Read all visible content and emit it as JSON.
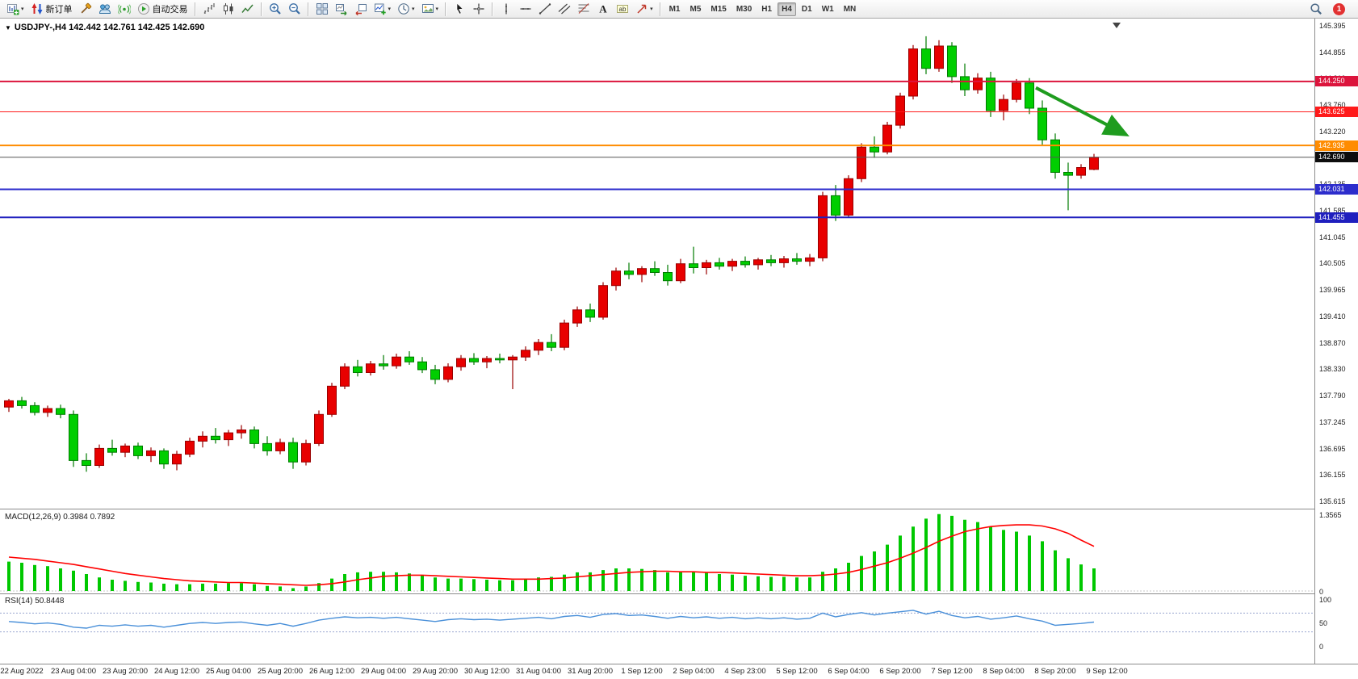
{
  "colors": {
    "bull": "#e80000",
    "bull_border": "#9a0000",
    "bear": "#00ce00",
    "bear_border": "#007a00",
    "macd_histogram": "#00c800",
    "macd_signal": "#ff0000",
    "rsi_line": "#4a90d9",
    "rsi_levels": "#9aa6d0",
    "annotation_arrow": "#1f9c1f"
  },
  "toolbar": {
    "groups": [
      {
        "items": [
          {
            "name": "new-chart-button",
            "icon": "new-chart",
            "caret": true
          },
          {
            "name": "new-order-button",
            "icon": "order-arrows",
            "label": "新订单"
          },
          {
            "name": "metaeditor-button",
            "icon": "hammer"
          },
          {
            "name": "experts-button",
            "icon": "experts"
          },
          {
            "name": "signals-button",
            "icon": "signals"
          },
          {
            "name": "autotrading-button",
            "icon": "play",
            "label": "自动交易"
          }
        ]
      },
      {
        "items": [
          {
            "name": "bar-chart-button",
            "icon": "bars"
          },
          {
            "name": "candle-chart-button",
            "icon": "candles"
          },
          {
            "name": "line-chart-button",
            "icon": "linechart"
          }
        ]
      },
      {
        "items": [
          {
            "name": "zoom-in-button",
            "icon": "zoom-in"
          },
          {
            "name": "zoom-out-button",
            "icon": "zoom-out"
          }
        ]
      },
      {
        "items": [
          {
            "name": "tile-windows-button",
            "icon": "tile"
          },
          {
            "name": "autoscroll-button",
            "icon": "autoscroll"
          },
          {
            "name": "chart-shift-button",
            "icon": "shift"
          },
          {
            "name": "indicators-button",
            "icon": "indicators",
            "caret": true
          },
          {
            "name": "periods-button",
            "icon": "clock",
            "caret": true
          },
          {
            "name": "templates-button",
            "icon": "template",
            "caret": true
          }
        ]
      },
      {
        "items": [
          {
            "name": "cursor-button",
            "icon": "cursor"
          },
          {
            "name": "crosshair-button",
            "icon": "crosshair"
          }
        ]
      },
      {
        "items": [
          {
            "name": "vertical-line-button",
            "icon": "vline"
          },
          {
            "name": "horizontal-line-button",
            "icon": "hline"
          },
          {
            "name": "trendline-button",
            "icon": "trendline"
          },
          {
            "name": "channel-button",
            "icon": "channel"
          },
          {
            "name": "fibonacci-button",
            "icon": "fibo"
          },
          {
            "name": "text-button",
            "icon": "text"
          },
          {
            "name": "label-button",
            "icon": "label"
          },
          {
            "name": "arrows-menu-button",
            "icon": "arrow-obj",
            "caret": true
          }
        ]
      }
    ],
    "timeframes": [
      "M1",
      "M5",
      "M15",
      "M30",
      "H1",
      "H4",
      "D1",
      "W1",
      "MN"
    ],
    "active_timeframe": "H4",
    "badge": "1"
  },
  "chart_data": {
    "type": "candlestick",
    "header": "USDJPY-,H4 142.442 142.761 142.425 142.690",
    "symbol": "USDJPY-",
    "timeframe": "H4",
    "current_ohlc": {
      "open": 142.442,
      "high": 142.761,
      "low": 142.425,
      "close": 142.69
    },
    "color_convention": "red-up-green-down",
    "y_axis": {
      "min": 135.615,
      "max": 145.395,
      "ticks": [
        "145.395",
        "144.855",
        "144.310",
        "143.760",
        "143.220",
        "142.675",
        "142.135",
        "141.585",
        "141.045",
        "140.505",
        "139.965",
        "139.410",
        "138.870",
        "138.330",
        "137.790",
        "137.245",
        "136.695",
        "136.155",
        "135.615"
      ]
    },
    "x_axis": {
      "labels": [
        "22 Aug 2022",
        "23 Aug 04:00",
        "23 Aug 20:00",
        "24 Aug 12:00",
        "25 Aug 04:00",
        "25 Aug 20:00",
        "26 Aug 12:00",
        "29 Aug 04:00",
        "29 Aug 20:00",
        "30 Aug 12:00",
        "31 Aug 04:00",
        "31 Aug 20:00",
        "1 Sep 12:00",
        "2 Sep 04:00",
        "4 Sep 23:00",
        "5 Sep 12:00",
        "6 Sep 04:00",
        "6 Sep 20:00",
        "7 Sep 12:00",
        "8 Sep 04:00",
        "8 Sep 20:00",
        "9 Sep 12:00"
      ]
    },
    "horizontal_lines": [
      {
        "price": 144.25,
        "label": "144.250",
        "color": "#dc143c",
        "width": 2
      },
      {
        "price": 143.625,
        "label": "143.625",
        "color": "#ff1a1a",
        "width": 1
      },
      {
        "price": 142.935,
        "label": "142.935",
        "color": "#ff8c00",
        "width": 2
      },
      {
        "price": 142.69,
        "label": "142.690",
        "color": "#555555",
        "width": 1,
        "label_bg": "#0d0d0d",
        "role": "current-price"
      },
      {
        "price": 142.031,
        "label": "142.031",
        "color": "#2d2dcc",
        "width": 2
      },
      {
        "price": 141.455,
        "label": "141.455",
        "color": "#1f1fbe",
        "width": 2
      }
    ],
    "annotations": [
      {
        "type": "arrow",
        "direction": "down-right",
        "color": "#1f9c1f",
        "x1_index": 79.5,
        "price1": 144.12,
        "x2_index": 86.3,
        "price2": 143.18
      }
    ],
    "candles": [
      [
        137.55,
        137.72,
        137.45,
        137.68
      ],
      [
        137.68,
        137.76,
        137.52,
        137.58
      ],
      [
        137.58,
        137.65,
        137.38,
        137.44
      ],
      [
        137.44,
        137.58,
        137.35,
        137.52
      ],
      [
        137.52,
        137.6,
        137.32,
        137.4
      ],
      [
        137.4,
        137.48,
        136.32,
        136.45
      ],
      [
        136.45,
        136.6,
        136.22,
        136.35
      ],
      [
        136.35,
        136.78,
        136.3,
        136.7
      ],
      [
        136.7,
        136.88,
        136.55,
        136.62
      ],
      [
        136.62,
        136.8,
        136.52,
        136.75
      ],
      [
        136.75,
        136.82,
        136.48,
        136.55
      ],
      [
        136.55,
        136.72,
        136.42,
        136.65
      ],
      [
        136.65,
        136.7,
        136.28,
        136.38
      ],
      [
        136.38,
        136.65,
        136.25,
        136.58
      ],
      [
        136.58,
        136.92,
        136.52,
        136.85
      ],
      [
        136.85,
        137.05,
        136.72,
        136.95
      ],
      [
        136.95,
        137.12,
        136.8,
        136.88
      ],
      [
        136.88,
        137.08,
        136.75,
        137.02
      ],
      [
        137.02,
        137.18,
        136.9,
        137.08
      ],
      [
        137.08,
        137.15,
        136.7,
        136.8
      ],
      [
        136.8,
        136.95,
        136.55,
        136.65
      ],
      [
        136.65,
        136.9,
        136.58,
        136.82
      ],
      [
        136.82,
        136.92,
        136.28,
        136.42
      ],
      [
        136.42,
        136.88,
        136.35,
        136.8
      ],
      [
        136.8,
        137.48,
        136.75,
        137.4
      ],
      [
        137.4,
        138.05,
        137.35,
        137.98
      ],
      [
        137.98,
        138.45,
        137.92,
        138.38
      ],
      [
        138.38,
        138.52,
        138.18,
        138.26
      ],
      [
        138.26,
        138.5,
        138.2,
        138.44
      ],
      [
        138.44,
        138.62,
        138.32,
        138.4
      ],
      [
        138.4,
        138.65,
        138.34,
        138.58
      ],
      [
        138.58,
        138.7,
        138.42,
        138.48
      ],
      [
        138.48,
        138.58,
        138.25,
        138.32
      ],
      [
        138.32,
        138.42,
        138.02,
        138.12
      ],
      [
        138.12,
        138.45,
        138.06,
        138.38
      ],
      [
        138.38,
        138.62,
        138.3,
        138.55
      ],
      [
        138.55,
        138.66,
        138.42,
        138.48
      ],
      [
        138.48,
        138.6,
        138.35,
        138.55
      ],
      [
        138.55,
        138.65,
        138.45,
        138.52
      ],
      [
        138.52,
        138.62,
        137.92,
        138.58
      ],
      [
        138.58,
        138.8,
        138.5,
        138.72
      ],
      [
        138.72,
        138.95,
        138.62,
        138.88
      ],
      [
        138.88,
        139.05,
        138.7,
        138.78
      ],
      [
        138.78,
        139.35,
        138.72,
        139.28
      ],
      [
        139.28,
        139.62,
        139.2,
        139.55
      ],
      [
        139.55,
        139.68,
        139.3,
        139.4
      ],
      [
        139.4,
        140.12,
        139.35,
        140.05
      ],
      [
        140.05,
        140.42,
        139.95,
        140.35
      ],
      [
        140.35,
        140.52,
        140.18,
        140.28
      ],
      [
        140.28,
        140.45,
        140.12,
        140.4
      ],
      [
        140.4,
        140.55,
        140.25,
        140.32
      ],
      [
        140.32,
        140.48,
        140.05,
        140.15
      ],
      [
        140.15,
        140.6,
        140.1,
        140.5
      ],
      [
        140.5,
        140.85,
        140.3,
        140.42
      ],
      [
        140.42,
        140.58,
        140.28,
        140.52
      ],
      [
        140.52,
        140.62,
        140.38,
        140.45
      ],
      [
        140.45,
        140.6,
        140.35,
        140.55
      ],
      [
        140.55,
        140.65,
        140.42,
        140.48
      ],
      [
        140.48,
        140.62,
        140.38,
        140.58
      ],
      [
        140.58,
        140.68,
        140.45,
        140.52
      ],
      [
        140.52,
        140.66,
        140.42,
        140.6
      ],
      [
        140.6,
        140.72,
        140.48,
        140.55
      ],
      [
        140.55,
        140.7,
        140.45,
        140.62
      ],
      [
        140.62,
        141.98,
        140.55,
        141.9
      ],
      [
        141.9,
        142.12,
        141.38,
        141.5
      ],
      [
        141.5,
        142.32,
        141.45,
        142.25
      ],
      [
        142.25,
        142.98,
        142.18,
        142.9
      ],
      [
        142.9,
        143.12,
        142.68,
        142.8
      ],
      [
        142.8,
        143.42,
        142.75,
        143.35
      ],
      [
        143.35,
        144.02,
        143.28,
        143.95
      ],
      [
        143.95,
        145.0,
        143.88,
        144.92
      ],
      [
        144.92,
        145.18,
        144.4,
        144.52
      ],
      [
        144.52,
        145.1,
        144.45,
        144.98
      ],
      [
        144.98,
        145.06,
        144.22,
        144.35
      ],
      [
        144.35,
        144.62,
        143.95,
        144.08
      ],
      [
        144.08,
        144.42,
        144.0,
        144.32
      ],
      [
        144.32,
        144.45,
        143.52,
        143.65
      ],
      [
        143.65,
        143.98,
        143.45,
        143.88
      ],
      [
        143.88,
        144.3,
        143.82,
        144.22
      ],
      [
        144.22,
        144.32,
        143.58,
        143.7
      ],
      [
        143.7,
        143.86,
        142.92,
        143.05
      ],
      [
        143.05,
        143.18,
        142.25,
        142.38
      ],
      [
        142.38,
        142.58,
        141.6,
        142.32
      ],
      [
        142.32,
        142.55,
        142.25,
        142.48
      ],
      [
        142.442,
        142.761,
        142.425,
        142.69
      ]
    ],
    "indicators": {
      "macd": {
        "label": "MACD(12,26,9) 0.3984 0.7892",
        "params": "12,26,9",
        "main_value": 0.3984,
        "signal_value": 0.7892,
        "axis_labels": [
          "1.3565",
          "0"
        ],
        "y_max": 1.3565,
        "histogram": [
          0.52,
          0.5,
          0.46,
          0.44,
          0.4,
          0.36,
          0.3,
          0.24,
          0.2,
          0.18,
          0.16,
          0.15,
          0.13,
          0.12,
          0.12,
          0.13,
          0.13,
          0.14,
          0.14,
          0.12,
          0.09,
          0.08,
          0.05,
          0.08,
          0.14,
          0.22,
          0.3,
          0.33,
          0.34,
          0.34,
          0.33,
          0.31,
          0.28,
          0.24,
          0.22,
          0.22,
          0.21,
          0.2,
          0.19,
          0.19,
          0.21,
          0.24,
          0.25,
          0.29,
          0.33,
          0.33,
          0.37,
          0.4,
          0.4,
          0.39,
          0.37,
          0.33,
          0.33,
          0.33,
          0.32,
          0.3,
          0.29,
          0.27,
          0.26,
          0.25,
          0.25,
          0.24,
          0.24,
          0.34,
          0.4,
          0.5,
          0.62,
          0.7,
          0.82,
          0.98,
          1.14,
          1.28,
          1.36,
          1.33,
          1.26,
          1.22,
          1.14,
          1.08,
          1.05,
          0.98,
          0.88,
          0.72,
          0.58,
          0.47,
          0.4
        ],
        "signal": [
          0.6,
          0.58,
          0.56,
          0.53,
          0.5,
          0.47,
          0.43,
          0.39,
          0.35,
          0.31,
          0.28,
          0.25,
          0.22,
          0.2,
          0.18,
          0.17,
          0.16,
          0.15,
          0.15,
          0.14,
          0.13,
          0.12,
          0.11,
          0.1,
          0.11,
          0.13,
          0.16,
          0.2,
          0.23,
          0.26,
          0.27,
          0.28,
          0.28,
          0.27,
          0.26,
          0.25,
          0.24,
          0.23,
          0.22,
          0.21,
          0.21,
          0.21,
          0.22,
          0.23,
          0.25,
          0.27,
          0.29,
          0.31,
          0.33,
          0.34,
          0.35,
          0.35,
          0.34,
          0.34,
          0.33,
          0.33,
          0.32,
          0.31,
          0.3,
          0.29,
          0.28,
          0.27,
          0.27,
          0.28,
          0.3,
          0.33,
          0.38,
          0.44,
          0.5,
          0.58,
          0.67,
          0.77,
          0.88,
          0.97,
          1.05,
          1.1,
          1.14,
          1.16,
          1.17,
          1.17,
          1.15,
          1.1,
          1.02,
          0.9,
          0.79
        ]
      },
      "rsi": {
        "label": "RSI(14) 50.8448",
        "period": 14,
        "value": 50.8448,
        "axis_labels": [
          "100",
          "50",
          "0"
        ],
        "levels": [
          70,
          30
        ],
        "values": [
          52,
          50,
          47,
          49,
          46,
          40,
          38,
          44,
          42,
          45,
          42,
          44,
          40,
          44,
          48,
          50,
          48,
          50,
          51,
          47,
          44,
          48,
          42,
          48,
          55,
          59,
          62,
          60,
          61,
          59,
          61,
          58,
          55,
          52,
          56,
          58,
          56,
          57,
          55,
          57,
          59,
          61,
          58,
          63,
          65,
          61,
          67,
          69,
          65,
          66,
          63,
          59,
          63,
          60,
          62,
          59,
          61,
          58,
          60,
          58,
          60,
          57,
          59,
          70,
          62,
          67,
          71,
          66,
          70,
          73,
          76,
          68,
          74,
          65,
          60,
          63,
          57,
          60,
          64,
          58,
          53,
          44,
          46,
          48,
          50.84
        ]
      }
    }
  }
}
